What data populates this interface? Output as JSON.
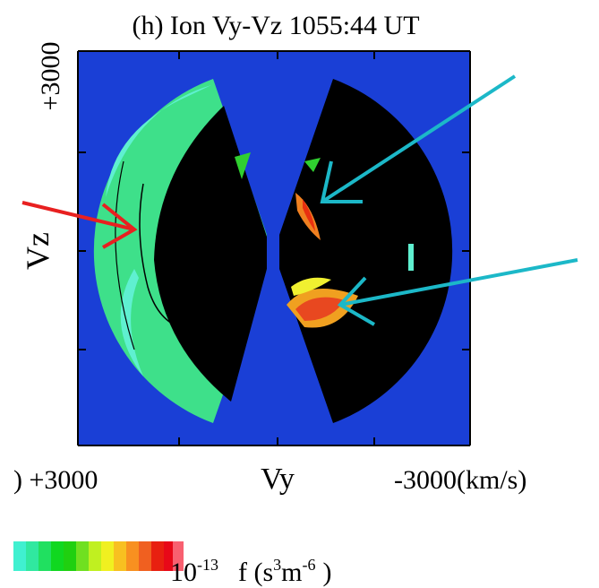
{
  "title": "(h) Ion Vy-Vz 1055:44 UT",
  "y_axis": {
    "label": "Vz",
    "top_tick": "+3000"
  },
  "x_axis": {
    "label": "Vy",
    "left_tick": ") +3000",
    "right_tick": "-3000(km/s)"
  },
  "colorbar": {
    "base": "10",
    "exponent": "-13",
    "quantity": "f (s",
    "power_1": "3",
    "unit": "m",
    "power_2": "-6",
    "close": ")"
  }
}
